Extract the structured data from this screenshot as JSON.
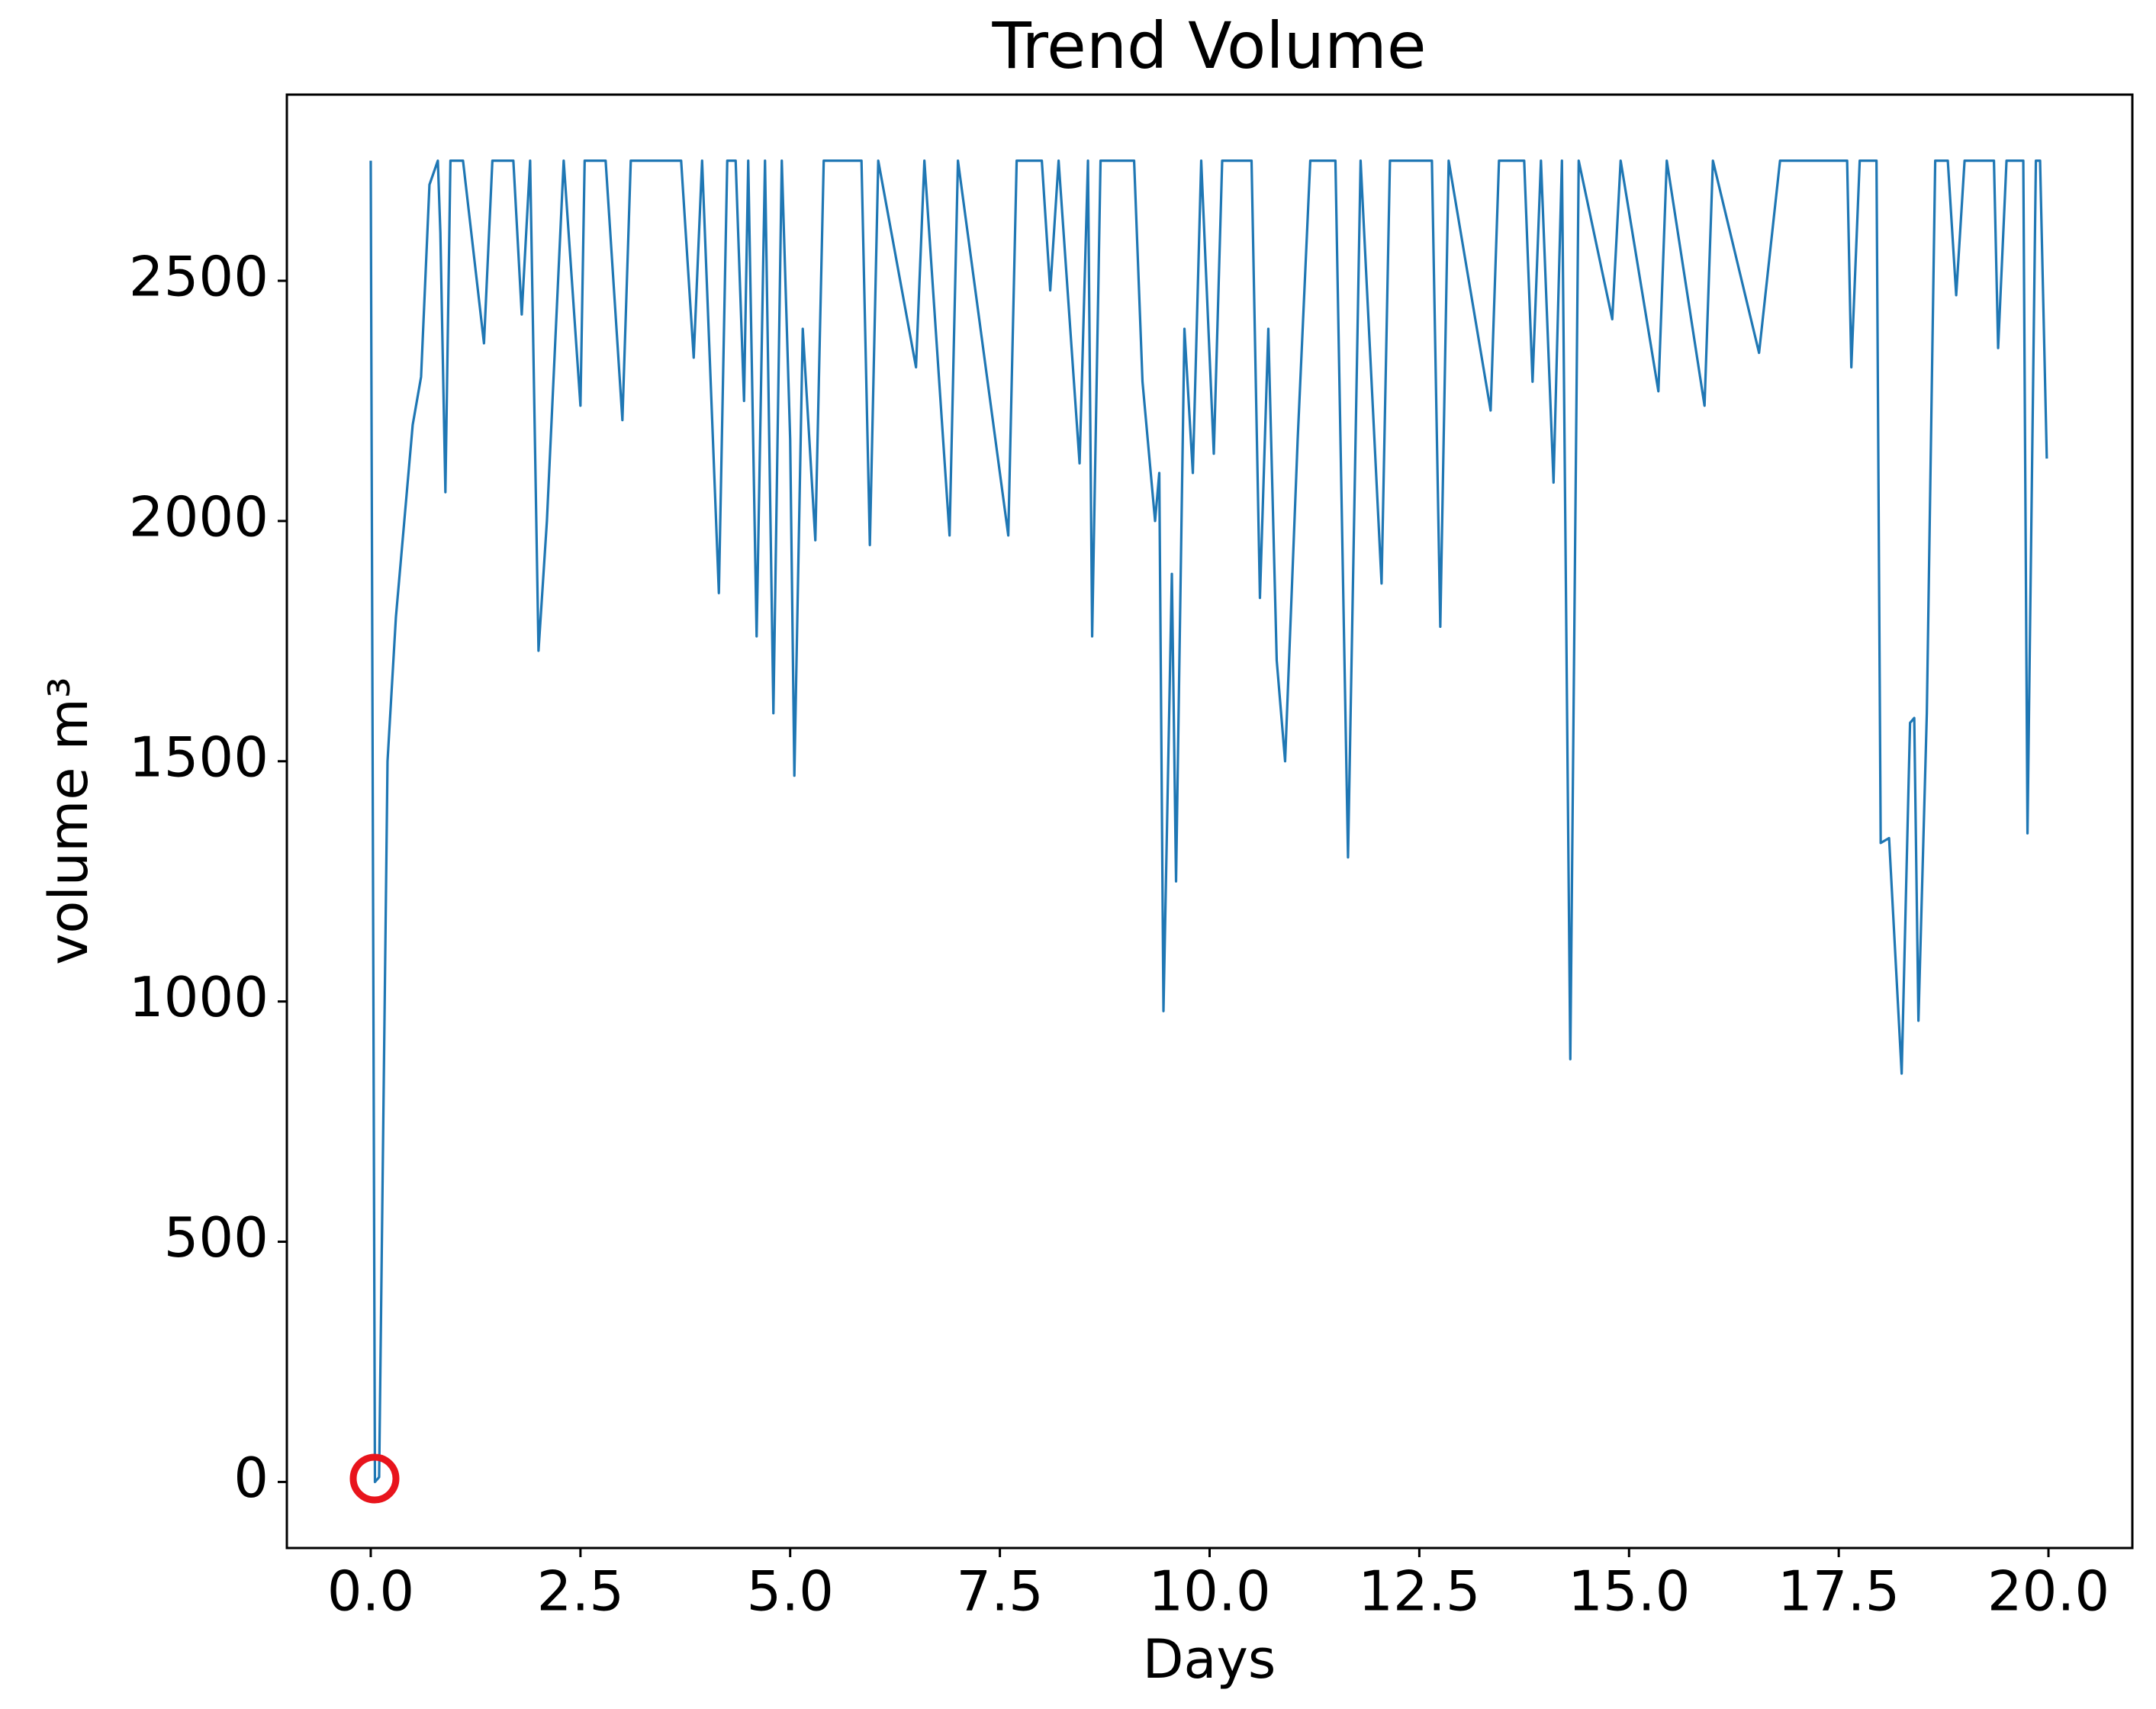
{
  "chart_data": {
    "type": "line",
    "title": "Trend Volume",
    "xlabel": "Days",
    "ylabel": "volume m³",
    "color": "#1f77b4",
    "x": [
      0,
      0.05,
      0.1,
      0.2,
      0.3,
      0.4,
      0.5,
      0.6,
      0.7,
      0.8,
      0.83,
      0.89,
      0.95,
      1.1,
      1.35,
      1.45,
      1.7,
      1.8,
      1.9,
      2.0,
      2.1,
      2.3,
      2.5,
      2.55,
      2.8,
      3.0,
      3.1,
      3.7,
      3.85,
      3.95,
      4.15,
      4.25,
      4.35,
      4.45,
      4.5,
      4.6,
      4.7,
      4.8,
      4.9,
      5.0,
      5.05,
      5.15,
      5.3,
      5.4,
      5.85,
      5.95,
      6.05,
      6.5,
      6.6,
      6.9,
      7.0,
      7.6,
      7.7,
      8.0,
      8.1,
      8.2,
      8.45,
      8.55,
      8.6,
      8.7,
      9.1,
      9.2,
      9.35,
      9.4,
      9.45,
      9.55,
      9.6,
      9.7,
      9.8,
      9.9,
      10.05,
      10.15,
      10.5,
      10.6,
      10.7,
      10.8,
      10.9,
      11.05,
      11.2,
      11.5,
      11.65,
      11.8,
      12.05,
      12.15,
      12.65,
      12.75,
      12.85,
      13.35,
      13.45,
      13.75,
      13.85,
      13.95,
      14.1,
      14.2,
      14.3,
      14.4,
      14.8,
      14.9,
      15.35,
      15.45,
      15.9,
      16.0,
      16.55,
      16.8,
      17.6,
      17.65,
      17.75,
      17.95,
      18.0,
      18.1,
      18.25,
      18.35,
      18.4,
      18.45,
      18.55,
      18.65,
      18.8,
      18.9,
      19.0,
      19.35,
      19.4,
      19.5,
      19.7,
      19.75,
      19.85,
      19.9,
      19.98
    ],
    "values": [
      2750,
      0,
      10,
      1500,
      1800,
      2000,
      2200,
      2300,
      2700,
      2750,
      2600,
      2060,
      2750,
      2750,
      2370,
      2750,
      2750,
      2430,
      2750,
      1730,
      2000,
      2750,
      2240,
      2750,
      2750,
      2210,
      2750,
      2750,
      2340,
      2750,
      1850,
      2750,
      2750,
      2250,
      2750,
      1760,
      2750,
      1600,
      2750,
      2170,
      1470,
      2400,
      1960,
      2750,
      2750,
      1950,
      2750,
      2320,
      2750,
      1970,
      2750,
      1970,
      2750,
      2750,
      2480,
      2750,
      2120,
      2750,
      1760,
      2750,
      2750,
      2290,
      2000,
      2100,
      980,
      1890,
      1250,
      2400,
      2100,
      2750,
      2140,
      2750,
      2750,
      1840,
      2400,
      1710,
      1500,
      2170,
      2750,
      2750,
      1300,
      2750,
      1870,
      2750,
      2750,
      1780,
      2750,
      2230,
      2750,
      2750,
      2290,
      2750,
      2080,
      2750,
      880,
      2750,
      2420,
      2750,
      2270,
      2750,
      2240,
      2750,
      2350,
      2750,
      2750,
      2320,
      2750,
      2750,
      1330,
      1340,
      850,
      1580,
      1590,
      960,
      1600,
      2750,
      2750,
      2470,
      2750,
      2750,
      2360,
      2750,
      2750,
      1350,
      2750,
      2750,
      2130
    ],
    "xlim": [
      -1,
      21
    ],
    "xticks": [
      {
        "value": 0,
        "label": "0.0"
      },
      2.5,
      {
        "value": 5,
        "label": "5.0"
      },
      7.5,
      {
        "value": 10,
        "label": "10.0"
      },
      12.5,
      {
        "value": 15,
        "label": "15.0"
      },
      17.5,
      {
        "value": 20,
        "label": "20.0"
      }
    ],
    "ylim": [
      -137.5,
      2887.5
    ],
    "yticks": [
      0,
      500,
      1000,
      1500,
      2000,
      2500
    ]
  }
}
